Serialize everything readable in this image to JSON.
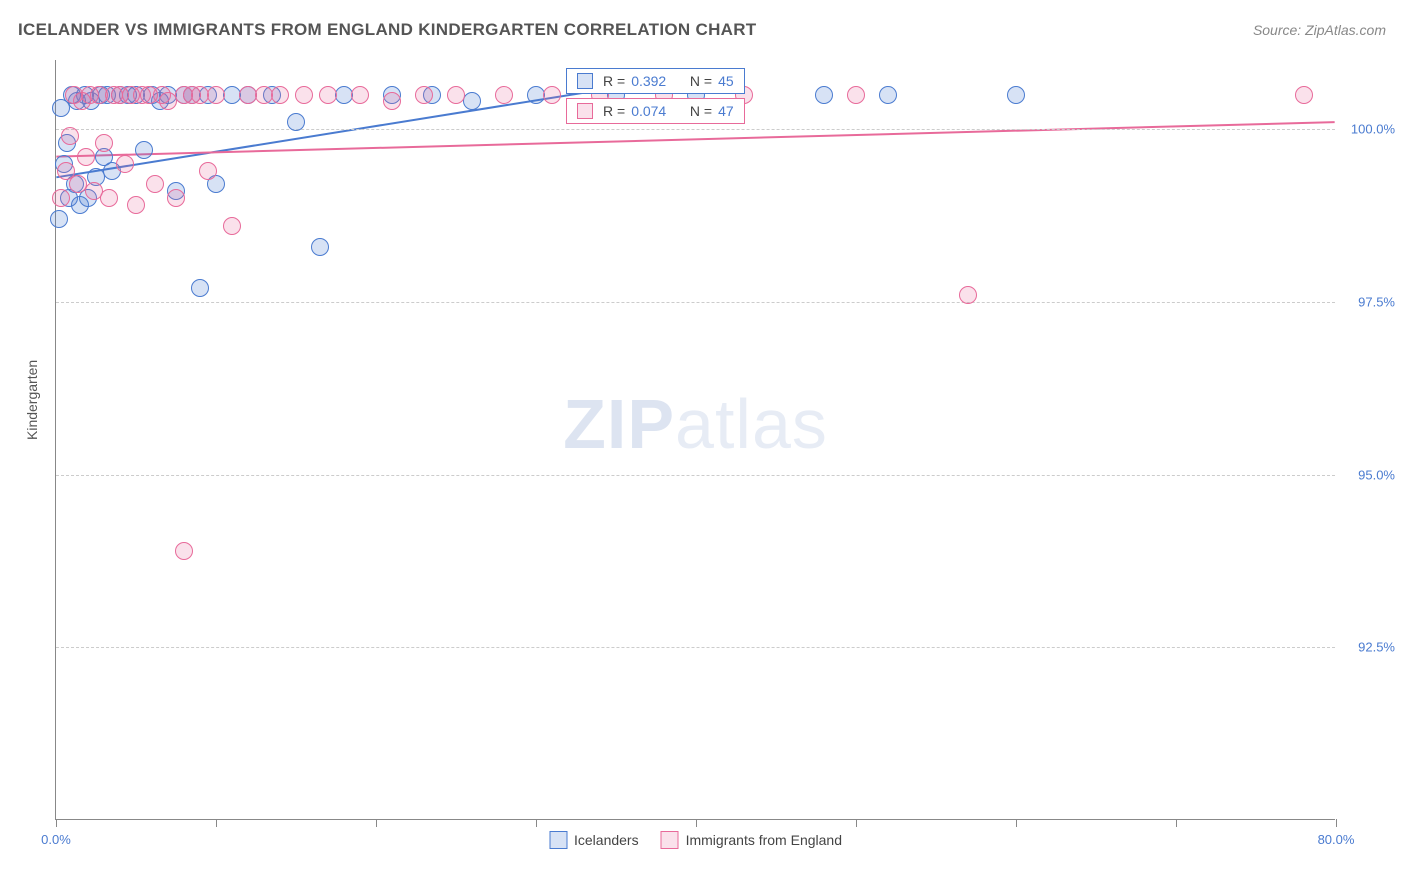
{
  "title": "ICELANDER VS IMMIGRANTS FROM ENGLAND KINDERGARTEN CORRELATION CHART",
  "source": "Source: ZipAtlas.com",
  "yaxis_label": "Kindergarten",
  "watermark_zip": "ZIP",
  "watermark_atlas": "atlas",
  "chart": {
    "type": "scatter",
    "xlim": [
      0,
      80
    ],
    "ylim": [
      90,
      101
    ],
    "x_tick_positions": [
      0,
      10,
      20,
      30,
      40,
      50,
      60,
      70,
      80
    ],
    "x_tick_labels_shown": {
      "0": "0.0%",
      "80": "80.0%"
    },
    "y_ticks": [
      {
        "v": 92.5,
        "label": "92.5%"
      },
      {
        "v": 95.0,
        "label": "95.0%"
      },
      {
        "v": 97.5,
        "label": "97.5%"
      },
      {
        "v": 100.0,
        "label": "100.0%"
      }
    ],
    "grid_color": "#cccccc",
    "axis_color": "#888888",
    "background_color": "#ffffff",
    "title_color": "#555555",
    "tick_label_color": "#4a7bd0",
    "title_fontsize": 17,
    "label_fontsize": 14,
    "tick_fontsize": 13,
    "marker_radius": 9,
    "marker_stroke_width": 1.5,
    "marker_fill_opacity": 0.22,
    "trendline_width": 2,
    "series": [
      {
        "name": "Icelanders",
        "color_stroke": "#4a7bd0",
        "color_fill": "rgba(74,123,208,0.22)",
        "R": "0.392",
        "N": "45",
        "trendline": {
          "x1": 0,
          "y1": 99.3,
          "x2": 35,
          "y2": 100.6
        },
        "points": [
          [
            0.2,
            98.7
          ],
          [
            0.3,
            100.3
          ],
          [
            0.5,
            99.5
          ],
          [
            0.7,
            99.8
          ],
          [
            0.8,
            99.0
          ],
          [
            1.0,
            100.5
          ],
          [
            1.2,
            99.2
          ],
          [
            1.3,
            100.4
          ],
          [
            1.5,
            98.9
          ],
          [
            1.8,
            100.5
          ],
          [
            2.0,
            99.0
          ],
          [
            2.2,
            100.4
          ],
          [
            2.5,
            99.3
          ],
          [
            2.8,
            100.5
          ],
          [
            3.0,
            99.6
          ],
          [
            3.2,
            100.5
          ],
          [
            3.5,
            99.4
          ],
          [
            4.0,
            100.5
          ],
          [
            4.5,
            100.5
          ],
          [
            5.0,
            100.5
          ],
          [
            5.5,
            99.7
          ],
          [
            6.0,
            100.5
          ],
          [
            6.5,
            100.4
          ],
          [
            7.0,
            100.5
          ],
          [
            7.5,
            99.1
          ],
          [
            8.0,
            100.5
          ],
          [
            8.5,
            100.5
          ],
          [
            9.5,
            100.5
          ],
          [
            10.0,
            99.2
          ],
          [
            11.0,
            100.5
          ],
          [
            12.0,
            100.5
          ],
          [
            13.5,
            100.5
          ],
          [
            15.0,
            100.1
          ],
          [
            16.5,
            98.3
          ],
          [
            18.0,
            100.5
          ],
          [
            21.0,
            100.5
          ],
          [
            23.5,
            100.5
          ],
          [
            26.0,
            100.4
          ],
          [
            30.0,
            100.5
          ],
          [
            35.0,
            100.5
          ],
          [
            40.0,
            100.5
          ],
          [
            48.0,
            100.5
          ],
          [
            52.0,
            100.5
          ],
          [
            60.0,
            100.5
          ],
          [
            9.0,
            97.7
          ]
        ]
      },
      {
        "name": "Immigrants from England",
        "color_stroke": "#e86a9a",
        "color_fill": "rgba(232,106,154,0.20)",
        "R": "0.074",
        "N": "47",
        "trendline": {
          "x1": 0,
          "y1": 99.6,
          "x2": 80,
          "y2": 100.1
        },
        "points": [
          [
            0.3,
            99.0
          ],
          [
            0.6,
            99.4
          ],
          [
            0.9,
            99.9
          ],
          [
            1.1,
            100.5
          ],
          [
            1.4,
            99.2
          ],
          [
            1.6,
            100.4
          ],
          [
            1.9,
            99.6
          ],
          [
            2.1,
            100.5
          ],
          [
            2.4,
            99.1
          ],
          [
            2.7,
            100.5
          ],
          [
            3.0,
            99.8
          ],
          [
            3.3,
            99.0
          ],
          [
            3.6,
            100.5
          ],
          [
            4.0,
            100.5
          ],
          [
            4.3,
            99.5
          ],
          [
            4.7,
            100.5
          ],
          [
            5.0,
            98.9
          ],
          [
            5.4,
            100.5
          ],
          [
            5.8,
            100.5
          ],
          [
            6.2,
            99.2
          ],
          [
            6.6,
            100.5
          ],
          [
            7.0,
            100.4
          ],
          [
            7.5,
            99.0
          ],
          [
            8.0,
            100.5
          ],
          [
            8.5,
            100.5
          ],
          [
            9.0,
            100.5
          ],
          [
            9.5,
            99.4
          ],
          [
            10.0,
            100.5
          ],
          [
            11.0,
            98.6
          ],
          [
            12.0,
            100.5
          ],
          [
            13.0,
            100.5
          ],
          [
            14.0,
            100.5
          ],
          [
            15.5,
            100.5
          ],
          [
            17.0,
            100.5
          ],
          [
            19.0,
            100.5
          ],
          [
            21.0,
            100.4
          ],
          [
            23.0,
            100.5
          ],
          [
            25.0,
            100.5
          ],
          [
            28.0,
            100.5
          ],
          [
            31.0,
            100.5
          ],
          [
            34.0,
            100.5
          ],
          [
            38.0,
            100.5
          ],
          [
            43.0,
            100.5
          ],
          [
            50.0,
            100.5
          ],
          [
            57.0,
            97.6
          ],
          [
            78.0,
            100.5
          ],
          [
            8.0,
            93.9
          ]
        ]
      }
    ]
  },
  "legend": {
    "series1_label": "Icelanders",
    "series2_label": "Immigrants from England"
  },
  "stat_labels": {
    "R": "R =",
    "N": "N ="
  }
}
